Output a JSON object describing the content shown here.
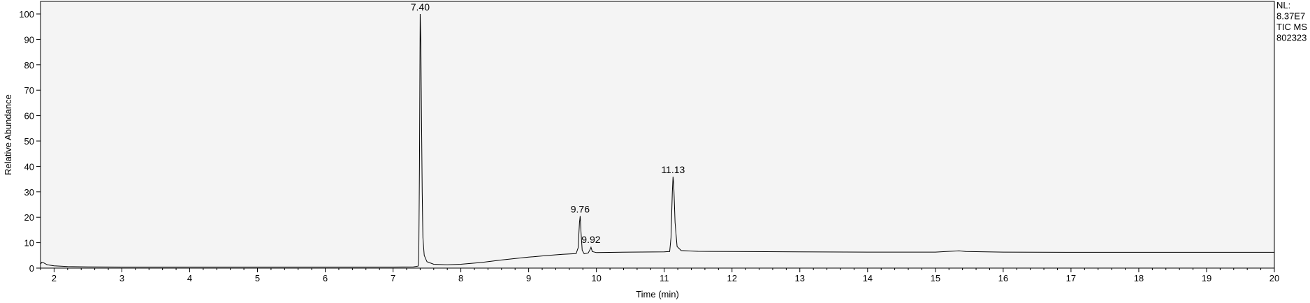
{
  "chart_data": {
    "type": "line",
    "xlabel": "Time (min)",
    "ylabel": "Relative Abundance",
    "xlim": [
      1.8,
      20
    ],
    "ylim": [
      0,
      100
    ],
    "x_ticks": [
      2,
      3,
      4,
      5,
      6,
      7,
      8,
      9,
      10,
      11,
      12,
      13,
      14,
      15,
      16,
      17,
      18,
      19,
      20
    ],
    "y_ticks": [
      0,
      10,
      20,
      30,
      40,
      50,
      60,
      70,
      80,
      90,
      100
    ],
    "grid": false,
    "info_lines": [
      "NL:",
      "8.37E7",
      "TIC  MS",
      "802323"
    ],
    "peak_labels": [
      {
        "text": "7.40",
        "x": 7.4,
        "y": 100
      },
      {
        "text": "9.76",
        "x": 9.76,
        "y": 20.5
      },
      {
        "text": "9.92",
        "x": 9.92,
        "y": 8.5
      },
      {
        "text": "11.13",
        "x": 11.13,
        "y": 36
      }
    ],
    "series": [
      {
        "points": [
          [
            1.8,
            1.5
          ],
          [
            1.82,
            2.3
          ],
          [
            1.85,
            2.0
          ],
          [
            1.9,
            1.3
          ],
          [
            2.0,
            0.9
          ],
          [
            2.2,
            0.6
          ],
          [
            2.5,
            0.5
          ],
          [
            3.0,
            0.4
          ],
          [
            4.0,
            0.4
          ],
          [
            5.0,
            0.4
          ],
          [
            6.0,
            0.4
          ],
          [
            7.0,
            0.4
          ],
          [
            7.3,
            0.5
          ],
          [
            7.37,
            0.8
          ],
          [
            7.38,
            5
          ],
          [
            7.39,
            40
          ],
          [
            7.4,
            100
          ],
          [
            7.41,
            88
          ],
          [
            7.42,
            60
          ],
          [
            7.43,
            30
          ],
          [
            7.44,
            12
          ],
          [
            7.46,
            5
          ],
          [
            7.5,
            2.5
          ],
          [
            7.6,
            1.5
          ],
          [
            7.8,
            1.3
          ],
          [
            8.0,
            1.5
          ],
          [
            8.3,
            2.2
          ],
          [
            8.6,
            3.2
          ],
          [
            9.0,
            4.3
          ],
          [
            9.3,
            5.0
          ],
          [
            9.5,
            5.4
          ],
          [
            9.7,
            5.7
          ],
          [
            9.73,
            8
          ],
          [
            9.75,
            18
          ],
          [
            9.76,
            20.5
          ],
          [
            9.77,
            15
          ],
          [
            9.79,
            7
          ],
          [
            9.82,
            5.6
          ],
          [
            9.88,
            6.0
          ],
          [
            9.91,
            7.5
          ],
          [
            9.92,
            8.2
          ],
          [
            9.94,
            6.5
          ],
          [
            10.0,
            6.1
          ],
          [
            10.5,
            6.3
          ],
          [
            11.0,
            6.4
          ],
          [
            11.08,
            6.5
          ],
          [
            11.1,
            12
          ],
          [
            11.12,
            30
          ],
          [
            11.13,
            36
          ],
          [
            11.14,
            33
          ],
          [
            11.16,
            18
          ],
          [
            11.19,
            8.5
          ],
          [
            11.25,
            6.9
          ],
          [
            11.5,
            6.6
          ],
          [
            12.0,
            6.5
          ],
          [
            13.0,
            6.4
          ],
          [
            14.0,
            6.3
          ],
          [
            15.0,
            6.3
          ],
          [
            15.35,
            6.8
          ],
          [
            15.45,
            6.5
          ],
          [
            16.0,
            6.3
          ],
          [
            17.0,
            6.2
          ],
          [
            18.0,
            6.2
          ],
          [
            19.0,
            6.2
          ],
          [
            20.0,
            6.2
          ]
        ]
      }
    ]
  }
}
